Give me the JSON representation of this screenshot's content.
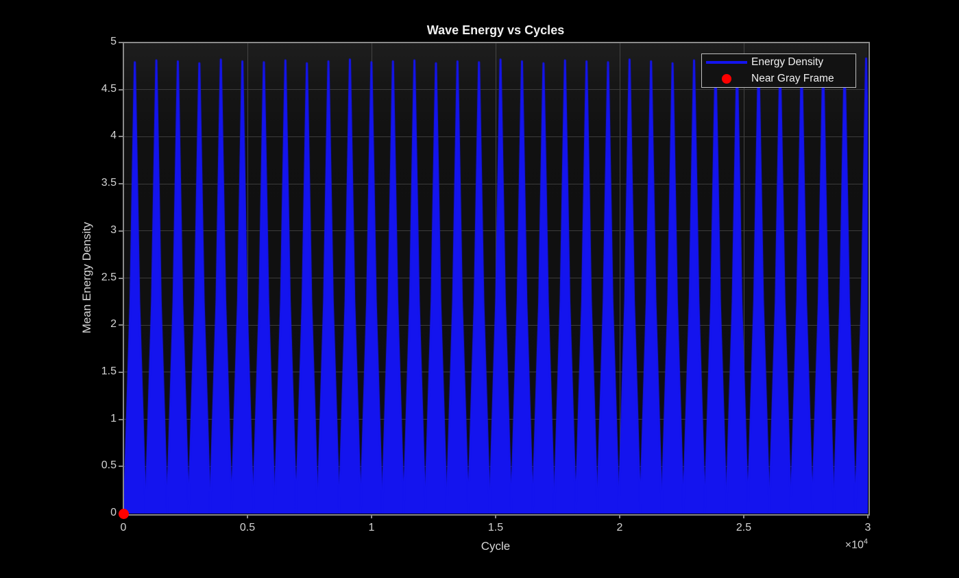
{
  "figure": {
    "background_color": "#000000",
    "plot_bg_color": "#121212",
    "frame_color": "#8a8a8a",
    "grid_color": "#404040",
    "tick_label_color": "#d4d4d4",
    "title_color": "#f0f0f0"
  },
  "chart_data": {
    "type": "line",
    "title": "Wave Energy vs Cycles",
    "xlabel": "Cycle",
    "ylabel": "Mean Energy Density",
    "xlim": [
      0,
      30000
    ],
    "ylim": [
      0,
      5
    ],
    "grid": true,
    "x_exponent": {
      "base": "×10",
      "exp": "4"
    },
    "xticks": {
      "values": [
        0,
        5000,
        10000,
        15000,
        20000,
        25000,
        30000
      ],
      "labels": [
        "0",
        "0.5",
        "1",
        "1.5",
        "2",
        "2.5",
        "3"
      ]
    },
    "yticks": {
      "values": [
        0,
        0.5,
        1,
        1.5,
        2,
        2.5,
        3,
        3.5,
        4,
        4.5,
        5
      ],
      "labels": [
        "0",
        "0.5",
        "1",
        "1.5",
        "2",
        "2.5",
        "3",
        "3.5",
        "4",
        "4.5",
        "5"
      ]
    },
    "series": [
      {
        "name": "Energy Density",
        "color": "#1414ee",
        "style": "spike-train",
        "baseline_band": 0.12,
        "spike_half_width_cycles": 433,
        "spike_shape": {
          "mid_value_fraction": 0.47,
          "mid_width_fraction": 0.4
        },
        "peak_cycles": [
          461,
          1328,
          2195,
          3061,
          3928,
          4795,
          5662,
          6529,
          7395,
          8262,
          9129,
          9996,
          10863,
          11729,
          12596,
          13463,
          14330,
          15197,
          16063,
          16930,
          17797,
          18664,
          19531,
          20397,
          21264,
          22131,
          22998,
          23865,
          24731,
          25598,
          26465,
          27332,
          28199,
          29065,
          29932
        ],
        "peak_values": [
          4.79,
          4.81,
          4.8,
          4.78,
          4.82,
          4.8,
          4.79,
          4.81,
          4.78,
          4.8,
          4.82,
          4.79,
          4.8,
          4.81,
          4.78,
          4.8,
          4.79,
          4.82,
          4.8,
          4.78,
          4.81,
          4.8,
          4.79,
          4.82,
          4.8,
          4.78,
          4.81,
          4.79,
          4.8,
          4.82,
          4.78,
          4.8,
          4.81,
          4.79,
          4.83
        ]
      },
      {
        "name": "Near Gray Frame",
        "color": "#ff0000",
        "style": "point",
        "points": [
          [
            0,
            0
          ]
        ],
        "marker_radius_px": 7.5
      }
    ],
    "legend": {
      "position": "top-right",
      "entries": [
        {
          "label": "Energy Density",
          "swatch": "line",
          "color": "#1414ee"
        },
        {
          "label": "Near Gray Frame",
          "swatch": "dot",
          "color": "#ff0000"
        }
      ]
    }
  }
}
